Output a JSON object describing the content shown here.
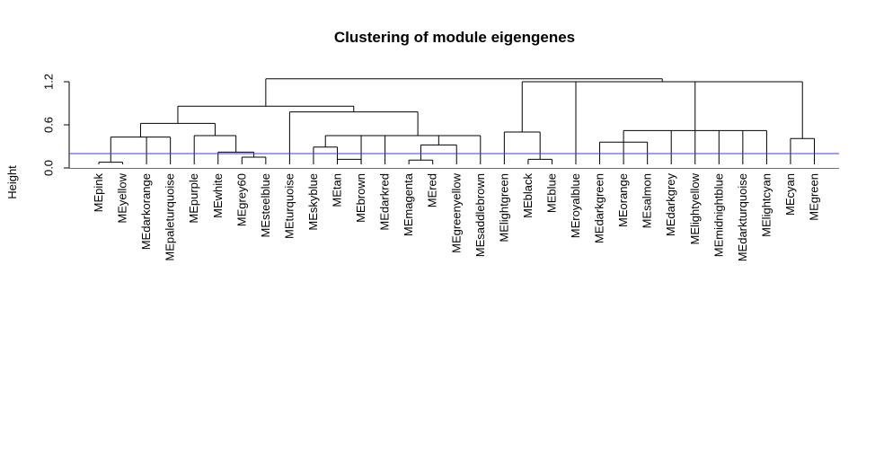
{
  "chart_data": {
    "type": "dendrogram",
    "title": "Clustering of module eigengenes",
    "ylabel": "Height",
    "xlabel": "",
    "ylim": [
      0,
      1.3
    ],
    "yticks": [
      0.0,
      0.6,
      1.2
    ],
    "ytick_labels": [
      "0.0",
      "0.6",
      "1.2"
    ],
    "leaves": [
      "MEpink",
      "MEyellow",
      "MEdarkorange",
      "MEpaleturquoise",
      "MEpurple",
      "MEwhite",
      "MEgrey60",
      "MEsteelblue",
      "MEturquoise",
      "MEskyblue",
      "MEtan",
      "MEbrown",
      "MEdarkred",
      "MEmagenta",
      "MEred",
      "MEgreenyellow",
      "MEsaddlebrown",
      "MElightgreen",
      "MEblack",
      "MEblue",
      "MEroyalblue",
      "MEdarkgreen",
      "MEorange",
      "MEsalmon",
      "MEdarkgrey",
      "MElightyellow",
      "MEmidnightblue",
      "MEdarkturquoise",
      "MElightcyan",
      "MEcyan",
      "MEgreen"
    ],
    "merges": [
      [
        -1,
        -2,
        0.08
      ],
      [
        -3,
        1,
        0.43
      ],
      [
        -4,
        -5,
        0.07
      ],
      [
        -10,
        -11,
        0.05
      ],
      [
        -12,
        -13,
        0.07
      ],
      [
        -14,
        -15,
        0.07
      ],
      [
        -16,
        -17,
        0.21
      ],
      [
        -18,
        -19,
        0.04
      ],
      [
        -20,
        -21,
        0.05
      ],
      [
        -22,
        -23,
        0.08
      ],
      [
        -24,
        -25,
        0.08
      ],
      [
        -26,
        -27,
        0.03
      ],
      [
        -28,
        -29,
        0.04
      ],
      [
        -30,
        -31,
        0.4
      ],
      [
        -6,
        -7,
        0.05
      ],
      [
        -8,
        -9,
        0.05
      ],
      [
        2,
        15,
        0.06
      ],
      [
        3,
        16,
        0.06
      ],
      [
        17,
        18,
        0.07
      ],
      [
        19,
        -32,
        0.07
      ],
      [
        4,
        -33,
        0.09
      ],
      [
        21,
        -34,
        0.07
      ],
      [
        5,
        6,
        0.24
      ],
      [
        23,
        7,
        0.3
      ],
      [
        8,
        9,
        0.26
      ],
      [
        10,
        11,
        0.08
      ],
      [
        26,
        -35,
        0.25
      ],
      [
        12,
        27,
        0.1
      ],
      [
        13,
        28,
        0.12
      ],
      [
        14,
        29,
        0.14
      ],
      [
        30,
        -36,
        0.24
      ],
      [
        20,
        22,
        0.13
      ],
      [
        -37,
        -38,
        0.2
      ],
      [
        -39,
        24,
        0.2
      ],
      [
        32,
        33,
        0.25
      ],
      [
        34,
        31,
        0.43
      ],
      [
        25,
        -40,
        0.14
      ],
      [
        36,
        -41,
        0.45
      ],
      [
        37,
        -42,
        0.49
      ],
      [
        38,
        -43,
        0.65
      ],
      [
        1,
        39,
        0.65
      ],
      [
        40,
        41,
        1.34
      ],
      [
        -44,
        35,
        0.27
      ],
      [
        43,
        42,
        0.14
      ],
      [
        44,
        -45,
        0.35
      ],
      [
        45,
        -46,
        0.51
      ],
      [
        46,
        -47,
        1.31
      ],
      [
        -48,
        47,
        0.26
      ],
      [
        48,
        -49,
        0.3
      ]
    ],
    "merges_note": "",
    "clusters": [
      {
        "members": [
          "MEpink",
          "MEyellow"
        ],
        "height": 0.08
      },
      {
        "members": [
          "MEpink",
          "MEyellow",
          "MEdarkorange",
          "MEpaleturquoise"
        ],
        "height": 0.43
      },
      {
        "members": [
          "MEpurple",
          "MEwhite",
          "MEgrey60",
          "MEsteelblue"
        ],
        "height": 0.45
      },
      {
        "members": [
          "MEgrey60",
          "MEsteelblue"
        ],
        "height": 0.15
      },
      {
        "members": [
          "MEwhite",
          "MEgrey60",
          "MEsteelblue"
        ],
        "height": 0.22
      },
      {
        "members": [
          "MEpink",
          "MEyellow",
          "MEdarkorange",
          "MEpaleturquoise",
          "MEpurple",
          "MEwhite",
          "MEgrey60",
          "MEsteelblue"
        ],
        "height": 0.62
      },
      {
        "members": [
          "MEskyblue",
          "MEtan"
        ],
        "height": 0.29
      },
      {
        "members": [
          "MEtan",
          "MEbrown"
        ],
        "height": 0.12
      },
      {
        "members": [
          "MEskyblue",
          "MEtan",
          "MEbrown",
          "MEdarkred"
        ],
        "height": 0.45
      },
      {
        "members": [
          "MEmagenta",
          "MEred"
        ],
        "height": 0.11
      },
      {
        "members": [
          "MEmagenta",
          "MEred",
          "MEgreenyellow"
        ],
        "height": 0.32
      },
      {
        "members": [
          "MEskyblue",
          "MEtan",
          "MEbrown",
          "MEdarkred",
          "MEmagenta",
          "MEred",
          "MEgreenyellow",
          "MEsaddlebrown"
        ],
        "height": 0.45
      },
      {
        "members": [
          "MEturquoise",
          "MEskyblue",
          "MEtan",
          "MEbrown",
          "MEdarkred",
          "MEmagenta",
          "MEred",
          "MEgreenyellow",
          "MEsaddlebrown"
        ],
        "height": 0.78
      },
      {
        "members": [
          "MEpink",
          "MEyellow",
          "MEdarkorange",
          "MEpaleturquoise",
          "MEpurple",
          "MEwhite",
          "MEgrey60",
          "MEsteelblue",
          "MEturquoise",
          "MEskyblue",
          "MEtan",
          "MEbrown",
          "MEdarkred",
          "MEmagenta",
          "MEred",
          "MEgreenyellow",
          "MEsaddlebrown"
        ],
        "height": 0.86
      },
      {
        "members": [
          "MEblack",
          "MEblue"
        ],
        "height": 0.12
      },
      {
        "members": [
          "MElightgreen",
          "MEblack",
          "MEblue"
        ],
        "height": 0.5
      },
      {
        "members": [
          "MEdarkgreen",
          "MEorange",
          "MEsalmon"
        ],
        "height": 0.36
      },
      {
        "members": [
          "MEdarkgreen",
          "MEorange",
          "MEsalmon",
          "MEdarkgrey",
          "MElightyellow",
          "MEmidnightblue",
          "MEdarkturquoise",
          "MElightcyan"
        ],
        "height": 0.52
      },
      {
        "members": [
          "MEcyan",
          "MEgreen"
        ],
        "height": 0.41
      },
      {
        "members": [
          "MElightgreen",
          "MEblack",
          "MEblue",
          "MEroyalblue",
          "MEdarkgreen",
          "MEorange",
          "MEsalmon",
          "MEdarkgrey",
          "MElightyellow",
          "MEmidnightblue",
          "MEdarkturquoise",
          "MElightcyan",
          "MEcyan",
          "MEgreen"
        ],
        "height": 1.2
      },
      {
        "members": [
          "all"
        ],
        "height": 1.24
      }
    ],
    "cut_lines": [
      {
        "height": 0.2,
        "color": "#3b3bff"
      },
      {
        "height": 0.0,
        "color": "#e04040"
      }
    ],
    "grid": false,
    "legend": "none"
  }
}
